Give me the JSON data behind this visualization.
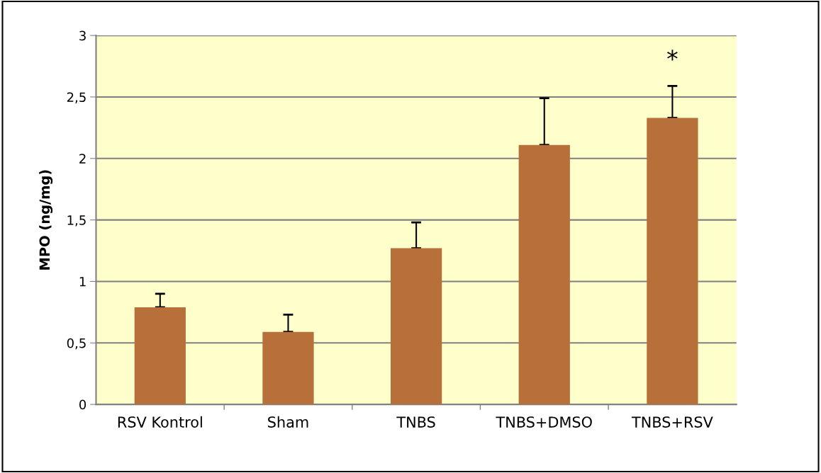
{
  "chart_data": {
    "type": "bar",
    "ylabel": "MPO (ng/mg)",
    "categories": [
      "RSV Kontrol",
      "Sham",
      "TNBS",
      "TNBS+DMSO",
      "TNBS+RSV"
    ],
    "values": [
      0.79,
      0.59,
      1.27,
      2.11,
      2.33
    ],
    "errors": [
      [
        0.79,
        0.9
      ],
      [
        0.59,
        0.73
      ],
      [
        1.27,
        1.48
      ],
      [
        2.11,
        2.49
      ],
      [
        2.33,
        2.59
      ]
    ],
    "color": "#b8703a",
    "ylim": [
      0,
      3
    ],
    "yticks": [
      0,
      {
        "value": 0.5,
        "label": "0,5"
      },
      1,
      {
        "value": 1.5,
        "label": "1,5"
      },
      2,
      {
        "value": 2.5,
        "label": "2,5"
      },
      3
    ],
    "grid": "y",
    "annotations": [
      "*"
    ]
  }
}
